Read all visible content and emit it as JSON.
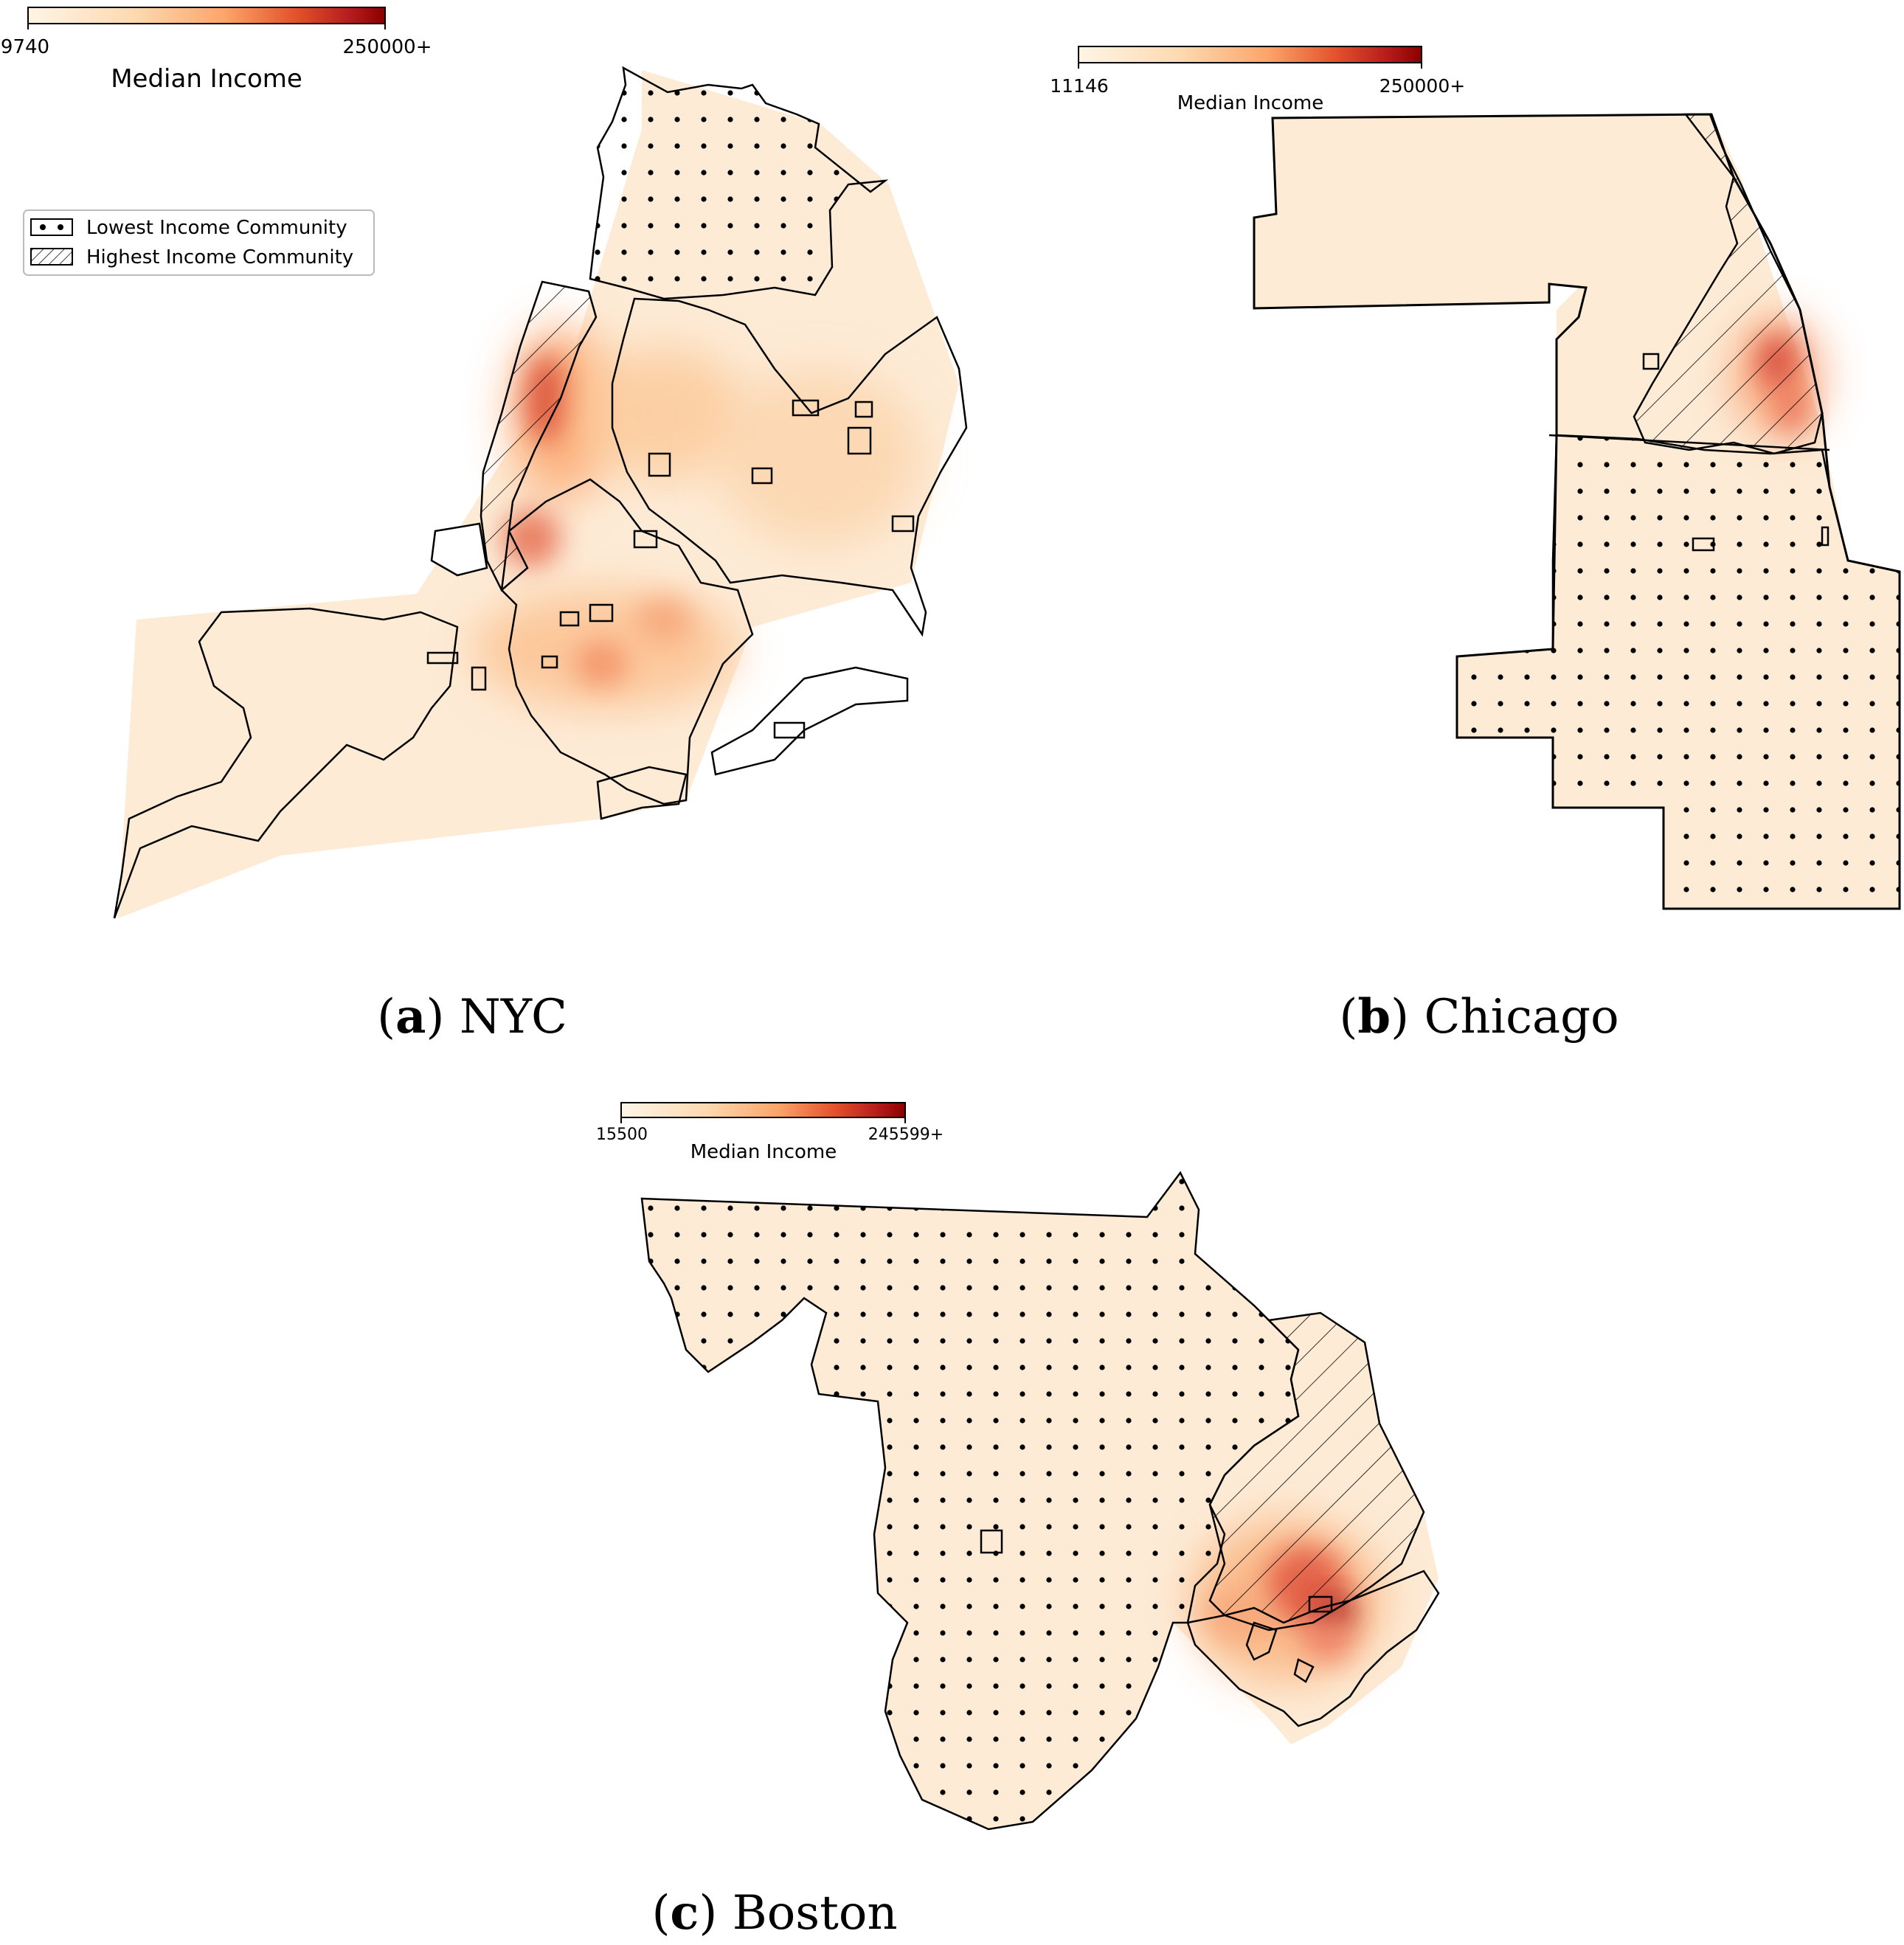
{
  "colors": {
    "colormap": [
      "#fff5e6",
      "#fdd9b0",
      "#fca56a",
      "#e3522c",
      "#b71c1c",
      "#8b0000"
    ],
    "boundary": "#000000"
  },
  "legend": {
    "lowest": "Lowest  Income Community",
    "highest": "Highest Income Community",
    "lowest_pattern": "dot-pattern-icon",
    "highest_pattern": "hatch-pattern-icon"
  },
  "panels": {
    "nyc": {
      "caption_letter": "a",
      "caption_city": "NYC",
      "colorbar": {
        "min_label": "9740",
        "max_label": "250000+",
        "title": "Median Income"
      }
    },
    "chicago": {
      "caption_letter": "b",
      "caption_city": "Chicago",
      "colorbar": {
        "min_label": "11146",
        "max_label": "250000+",
        "title": "Median Income"
      }
    },
    "boston": {
      "caption_letter": "c",
      "caption_city": "Boston",
      "colorbar": {
        "min_label": "15500",
        "max_label": "245599+",
        "title": "Median Income"
      }
    }
  }
}
